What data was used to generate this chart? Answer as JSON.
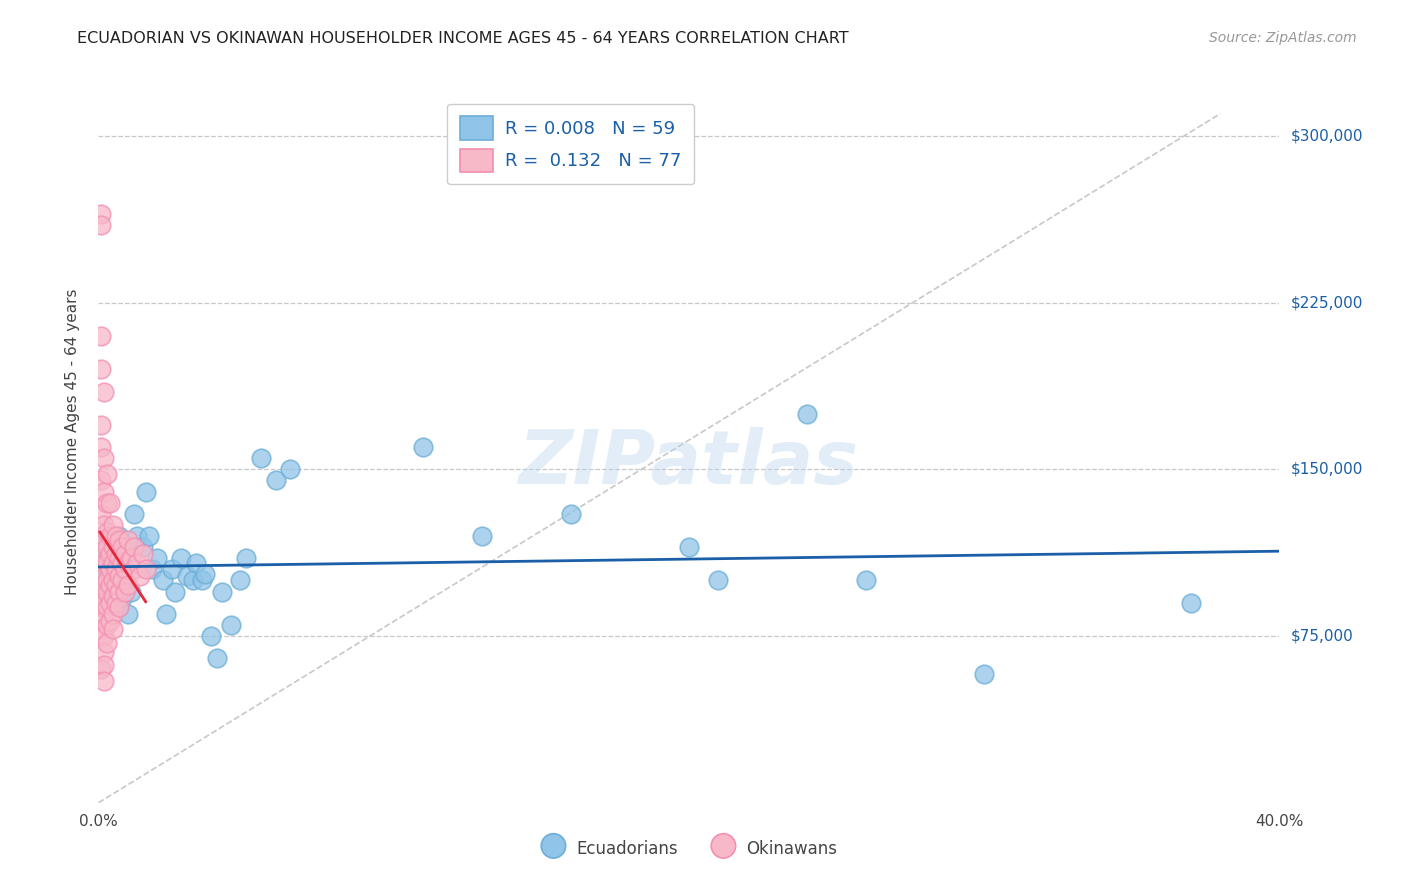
{
  "title": "ECUADORIAN VS OKINAWAN HOUSEHOLDER INCOME AGES 45 - 64 YEARS CORRELATION CHART",
  "source": "Source: ZipAtlas.com",
  "ylabel": "Householder Income Ages 45 - 64 years",
  "xlim": [
    0.0,
    0.4
  ],
  "ylim": [
    0,
    325000
  ],
  "yticks": [
    75000,
    150000,
    225000,
    300000
  ],
  "ytick_labels": [
    "$75,000",
    "$150,000",
    "$225,000",
    "$300,000"
  ],
  "xticks": [
    0.0,
    0.05,
    0.1,
    0.15,
    0.2,
    0.25,
    0.3,
    0.35,
    0.4
  ],
  "xtick_labels": [
    "0.0%",
    "",
    "",
    "",
    "",
    "",
    "",
    "",
    "40.0%"
  ],
  "background_color": "#ffffff",
  "grid_color": "#c8c8c8",
  "blue_dot_color": "#90c4e8",
  "blue_dot_edge": "#6baed6",
  "pink_dot_color": "#f7b8c8",
  "pink_dot_edge": "#f48fb1",
  "blue_line_color": "#1a5fa8",
  "pink_line_color": "#e8263a",
  "diagonal_color": "#c8c8c8",
  "ytick_color": "#1a5fa8",
  "legend_R_blue": "0.008",
  "legend_N_blue": "59",
  "legend_R_pink": "0.132",
  "legend_N_pink": "77",
  "watermark": "ZIPatlas",
  "ecuadorians_x": [
    0.001,
    0.001,
    0.002,
    0.002,
    0.003,
    0.003,
    0.003,
    0.004,
    0.004,
    0.004,
    0.005,
    0.005,
    0.005,
    0.005,
    0.006,
    0.006,
    0.007,
    0.007,
    0.008,
    0.008,
    0.009,
    0.01,
    0.01,
    0.011,
    0.012,
    0.013,
    0.015,
    0.016,
    0.017,
    0.018,
    0.02,
    0.022,
    0.023,
    0.025,
    0.026,
    0.028,
    0.03,
    0.032,
    0.033,
    0.035,
    0.036,
    0.038,
    0.04,
    0.042,
    0.045,
    0.048,
    0.05,
    0.055,
    0.06,
    0.065,
    0.11,
    0.13,
    0.16,
    0.2,
    0.21,
    0.24,
    0.26,
    0.3,
    0.37
  ],
  "ecuadorians_y": [
    115000,
    105000,
    95000,
    100000,
    108000,
    112000,
    103000,
    98000,
    107000,
    95000,
    110000,
    102000,
    97000,
    90000,
    108000,
    95000,
    120000,
    88000,
    105000,
    92000,
    100000,
    115000,
    85000,
    95000,
    130000,
    120000,
    115000,
    140000,
    120000,
    105000,
    110000,
    100000,
    85000,
    105000,
    95000,
    110000,
    102000,
    100000,
    108000,
    100000,
    103000,
    75000,
    65000,
    95000,
    80000,
    100000,
    110000,
    155000,
    145000,
    150000,
    160000,
    120000,
    130000,
    115000,
    100000,
    175000,
    100000,
    58000,
    90000
  ],
  "okinawans_x": [
    0.001,
    0.001,
    0.001,
    0.001,
    0.001,
    0.001,
    0.001,
    0.001,
    0.001,
    0.001,
    0.001,
    0.001,
    0.001,
    0.001,
    0.002,
    0.002,
    0.002,
    0.002,
    0.002,
    0.002,
    0.002,
    0.002,
    0.002,
    0.002,
    0.002,
    0.002,
    0.002,
    0.003,
    0.003,
    0.003,
    0.003,
    0.003,
    0.003,
    0.003,
    0.003,
    0.003,
    0.003,
    0.004,
    0.004,
    0.004,
    0.004,
    0.004,
    0.004,
    0.004,
    0.005,
    0.005,
    0.005,
    0.005,
    0.005,
    0.005,
    0.005,
    0.006,
    0.006,
    0.006,
    0.006,
    0.006,
    0.007,
    0.007,
    0.007,
    0.007,
    0.007,
    0.008,
    0.008,
    0.008,
    0.009,
    0.009,
    0.009,
    0.01,
    0.01,
    0.01,
    0.011,
    0.012,
    0.012,
    0.013,
    0.014,
    0.015,
    0.016
  ],
  "okinawans_y": [
    265000,
    260000,
    210000,
    195000,
    170000,
    160000,
    145000,
    130000,
    115000,
    105000,
    95000,
    88000,
    78000,
    60000,
    185000,
    155000,
    140000,
    125000,
    118000,
    108000,
    98000,
    90000,
    82000,
    75000,
    68000,
    62000,
    55000,
    148000,
    135000,
    122000,
    115000,
    108000,
    100000,
    95000,
    88000,
    80000,
    72000,
    135000,
    120000,
    112000,
    105000,
    98000,
    90000,
    82000,
    125000,
    115000,
    108000,
    100000,
    93000,
    85000,
    78000,
    120000,
    112000,
    105000,
    98000,
    90000,
    118000,
    110000,
    102000,
    95000,
    88000,
    115000,
    108000,
    100000,
    112000,
    105000,
    95000,
    118000,
    108000,
    98000,
    110000,
    115000,
    105000,
    108000,
    102000,
    112000,
    105000
  ]
}
